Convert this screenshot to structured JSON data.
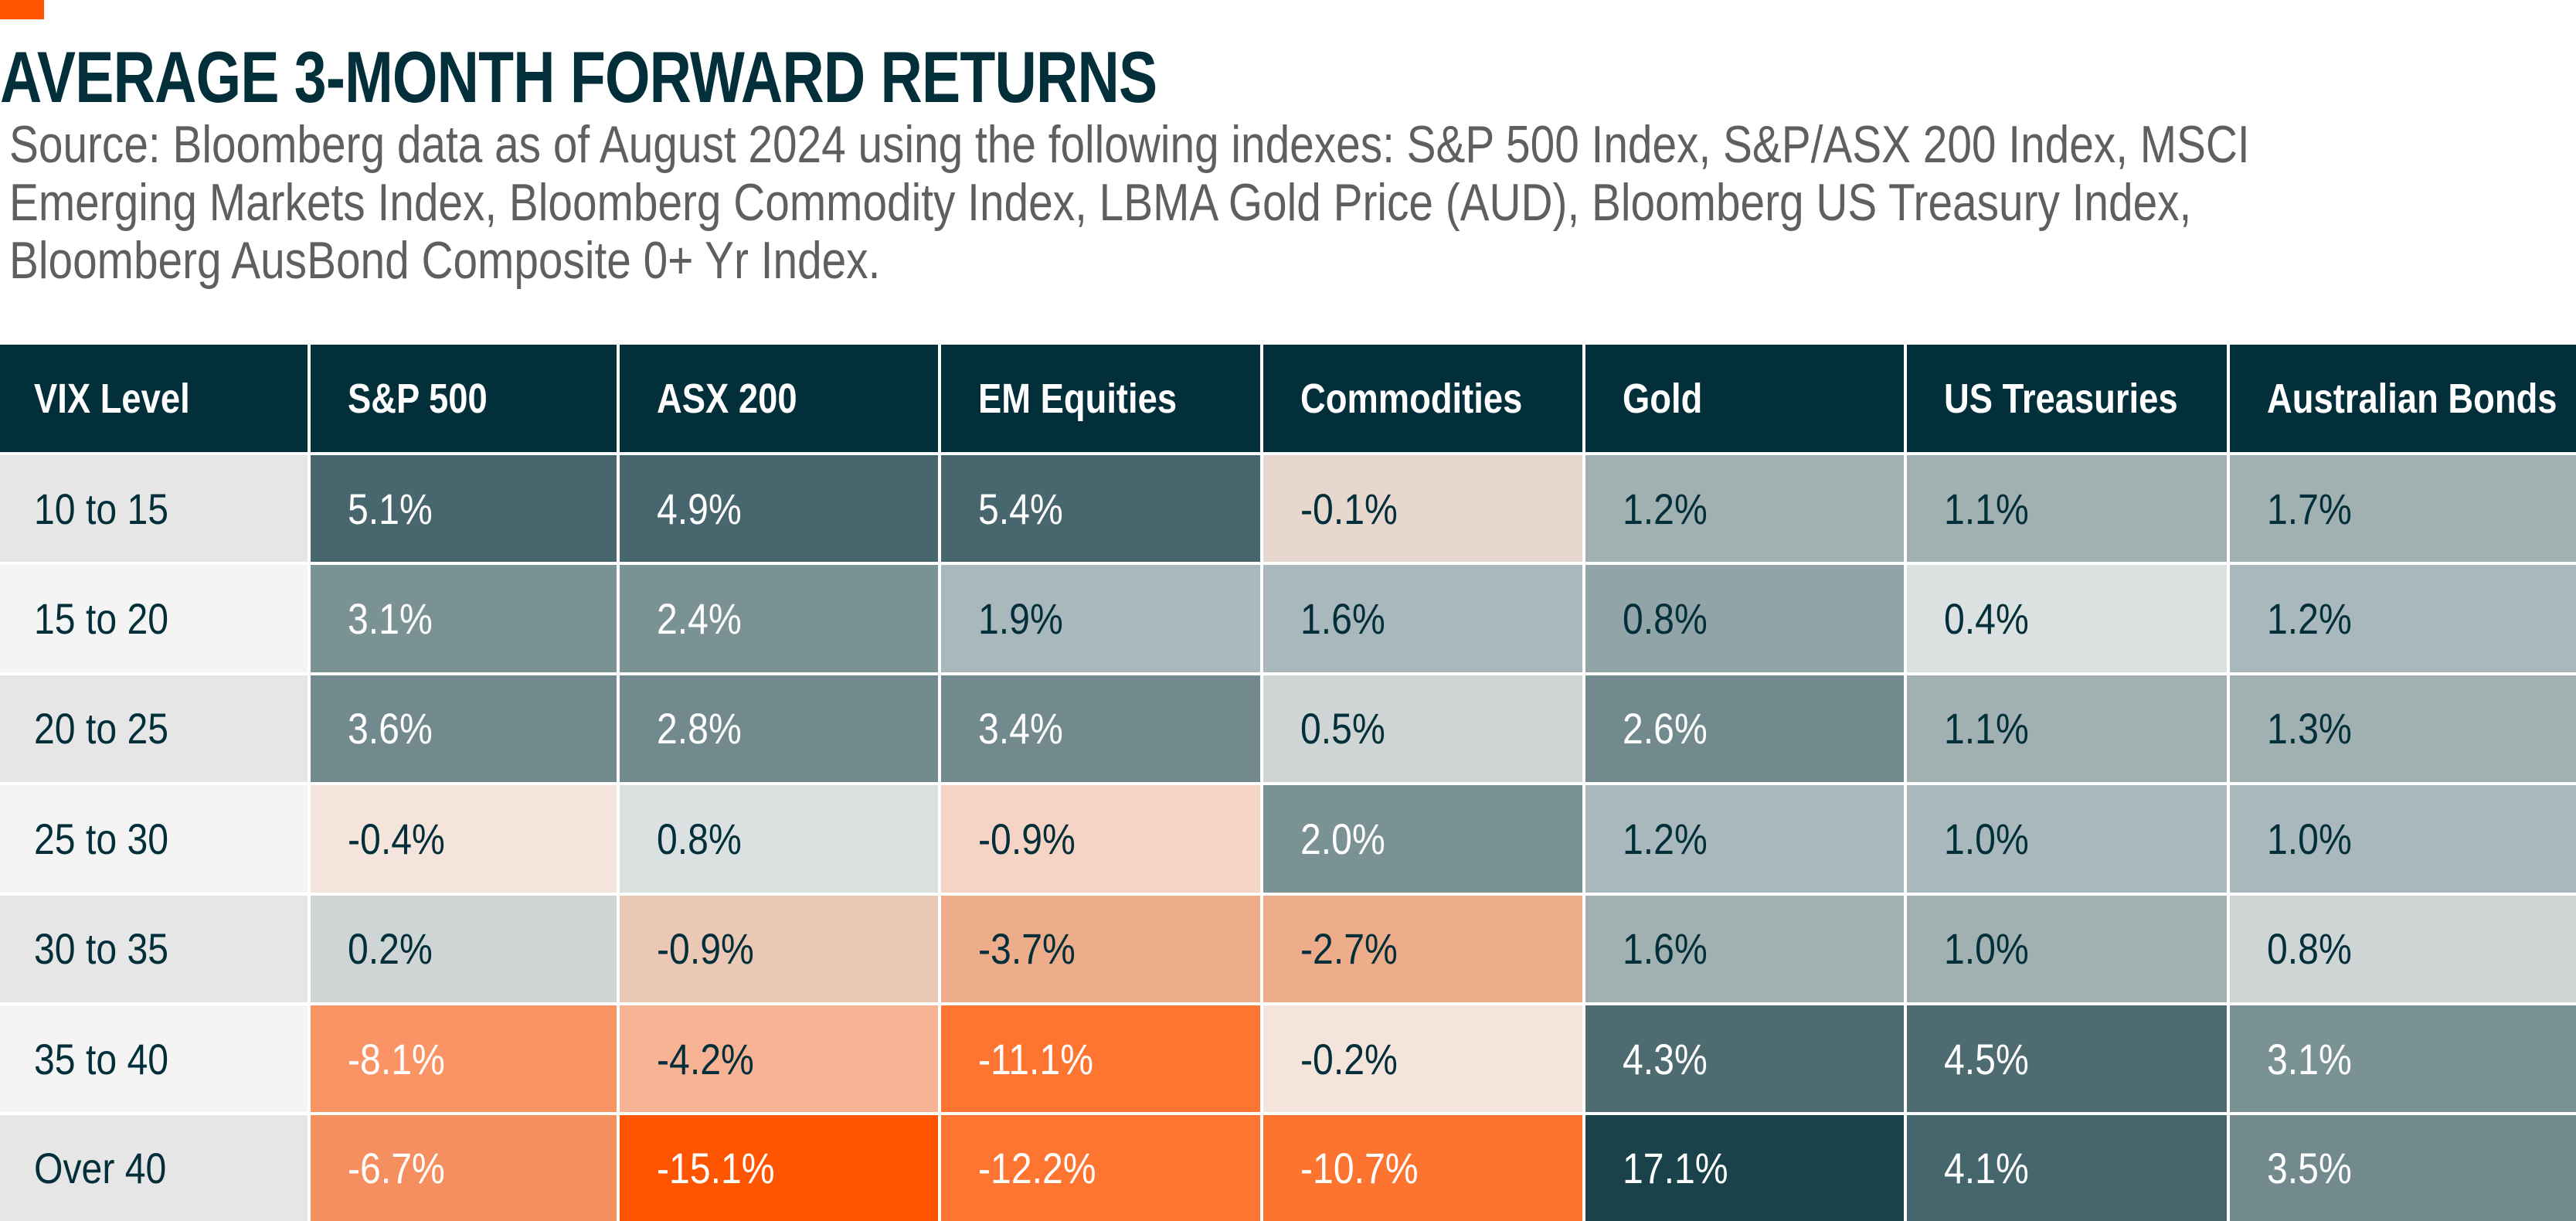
{
  "header": {
    "accent_color": "#FF5500",
    "title": "AVERAGE 3-MONTH FORWARD RETURNS",
    "subtitle_lines": [
      "Source: Bloomberg data as of August 2024 using the following indexes: S&P 500 Index, S&P/ASX 200 Index, MSCI",
      "Emerging Markets Index, Bloomberg Commodity Index, LBMA Gold Price (AUD), Bloomberg US Treasury Index,",
      "Bloomberg AusBond Composite 0+ Yr Index."
    ]
  },
  "colors": {
    "header_bg": "#022F3A",
    "header_text": "#FFFFFF",
    "dark_text": "#022F3A",
    "light_text": "#FFFFFF",
    "label_bg_odd": "#E6E6E6",
    "label_bg_even": "#F4F4F4",
    "subtitle_text": "#5F5F5F"
  },
  "chart_data": {
    "type": "heatmap",
    "title": "AVERAGE 3-MONTH FORWARD RETURNS",
    "subtitle": "Source: Bloomberg data as of August 2024 using the following indexes: S&P 500 Index, S&P/ASX 200 Index, MSCI Emerging Markets Index, Bloomberg Commodity Index, LBMA Gold Price (AUD), Bloomberg US Treasury Index, Bloomberg AusBond Composite 0+ Yr Index.",
    "row_header_label": "VIX Level",
    "columns": [
      "S&P 500",
      "ASX 200",
      "EM Equities",
      "Commodities",
      "Gold",
      "US Treasuries",
      "Australian Bonds"
    ],
    "rows": [
      "10 to  15",
      "15 to 20",
      "20 to 25",
      "25 to 30",
      "30  to 35",
      "35 to 40",
      "Over 40"
    ],
    "unit": "%",
    "values": [
      [
        5.1,
        4.9,
        5.4,
        -0.1,
        1.2,
        1.1,
        1.7
      ],
      [
        3.1,
        2.4,
        1.9,
        1.6,
        0.8,
        0.4,
        1.2
      ],
      [
        3.6,
        2.8,
        3.4,
        0.5,
        2.6,
        1.1,
        1.3
      ],
      [
        -0.4,
        0.8,
        -0.9,
        2.0,
        1.2,
        1.0,
        1.0
      ],
      [
        0.2,
        -0.9,
        -3.7,
        -2.7,
        1.6,
        1.0,
        0.8
      ],
      [
        -8.1,
        -4.2,
        -11.1,
        -0.2,
        4.3,
        4.5,
        3.1
      ],
      [
        -6.7,
        -15.1,
        -12.2,
        -10.7,
        17.1,
        4.1,
        3.5
      ]
    ],
    "labels": [
      [
        "5.1%",
        "4.9%",
        "5.4%",
        "-0.1%",
        "1.2%",
        "1.1%",
        "1.7%"
      ],
      [
        "3.1%",
        "2.4%",
        "1.9%",
        "1.6%",
        "0.8%",
        "0.4%",
        "1.2%"
      ],
      [
        "3.6%",
        "2.8%",
        "3.4%",
        "0.5%",
        "2.6%",
        "1.1%",
        "1.3%"
      ],
      [
        "-0.4%",
        "0.8%",
        "-0.9%",
        "2.0%",
        "1.2%",
        "1.0%",
        "1.0%"
      ],
      [
        "0.2%",
        "-0.9%",
        "-3.7%",
        "-2.7%",
        "1.6%",
        "1.0%",
        "0.8%"
      ],
      [
        "-8.1%",
        "-4.2%",
        "-11.1%",
        "-0.2%",
        "4.3%",
        "4.5%",
        "3.1%"
      ],
      [
        "-6.7%",
        "-15.1%",
        "-12.2%",
        "-10.7%",
        "17.1%",
        "4.1%",
        "3.5%"
      ]
    ],
    "cell_colors": [
      [
        "#48666E",
        "#48666E",
        "#48666E",
        "#E8D7CF",
        "#A1B0B1",
        "#A1B0B1",
        "#A1B0B1"
      ],
      [
        "#7B9295",
        "#7B9295",
        "#A9B8BC",
        "#A9B8BC",
        "#91A5A8",
        "#DBE1E1",
        "#A9B8BC"
      ],
      [
        "#728A8E",
        "#728A8E",
        "#728A8E",
        "#CFD5D5",
        "#728A8E",
        "#A1B0B1",
        "#A1B0B1"
      ],
      [
        "#F5E4DC",
        "#DBE1E1",
        "#F5D4C5",
        "#7B9295",
        "#A9B8BC",
        "#A9B8BC",
        "#A9B8BC"
      ],
      [
        "#CFD5D5",
        "#EAC8B5",
        "#EEAD8A",
        "#EEAD8A",
        "#A1B0B1",
        "#A1B0B1",
        "#CFD5D5"
      ],
      [
        "#FB9464",
        "#F8B394",
        "#FE7431",
        "#F5E4DC",
        "#4D6B71",
        "#4D6B71",
        "#7B9295"
      ],
      [
        "#F68F60",
        "#FF5500",
        "#FE7431",
        "#FC7430",
        "#19424A",
        "#45666D",
        "#728A8E"
      ]
    ],
    "text_light": [
      [
        true,
        true,
        true,
        false,
        false,
        false,
        false
      ],
      [
        true,
        true,
        false,
        false,
        false,
        false,
        false
      ],
      [
        true,
        true,
        true,
        false,
        true,
        false,
        false
      ],
      [
        false,
        false,
        false,
        true,
        false,
        false,
        false
      ],
      [
        false,
        false,
        false,
        false,
        false,
        false,
        false
      ],
      [
        true,
        false,
        true,
        false,
        true,
        true,
        true
      ],
      [
        true,
        true,
        true,
        true,
        true,
        true,
        true
      ]
    ],
    "color_scale": "diverging: orange (negative) to dark teal (positive)",
    "legend": "none"
  }
}
